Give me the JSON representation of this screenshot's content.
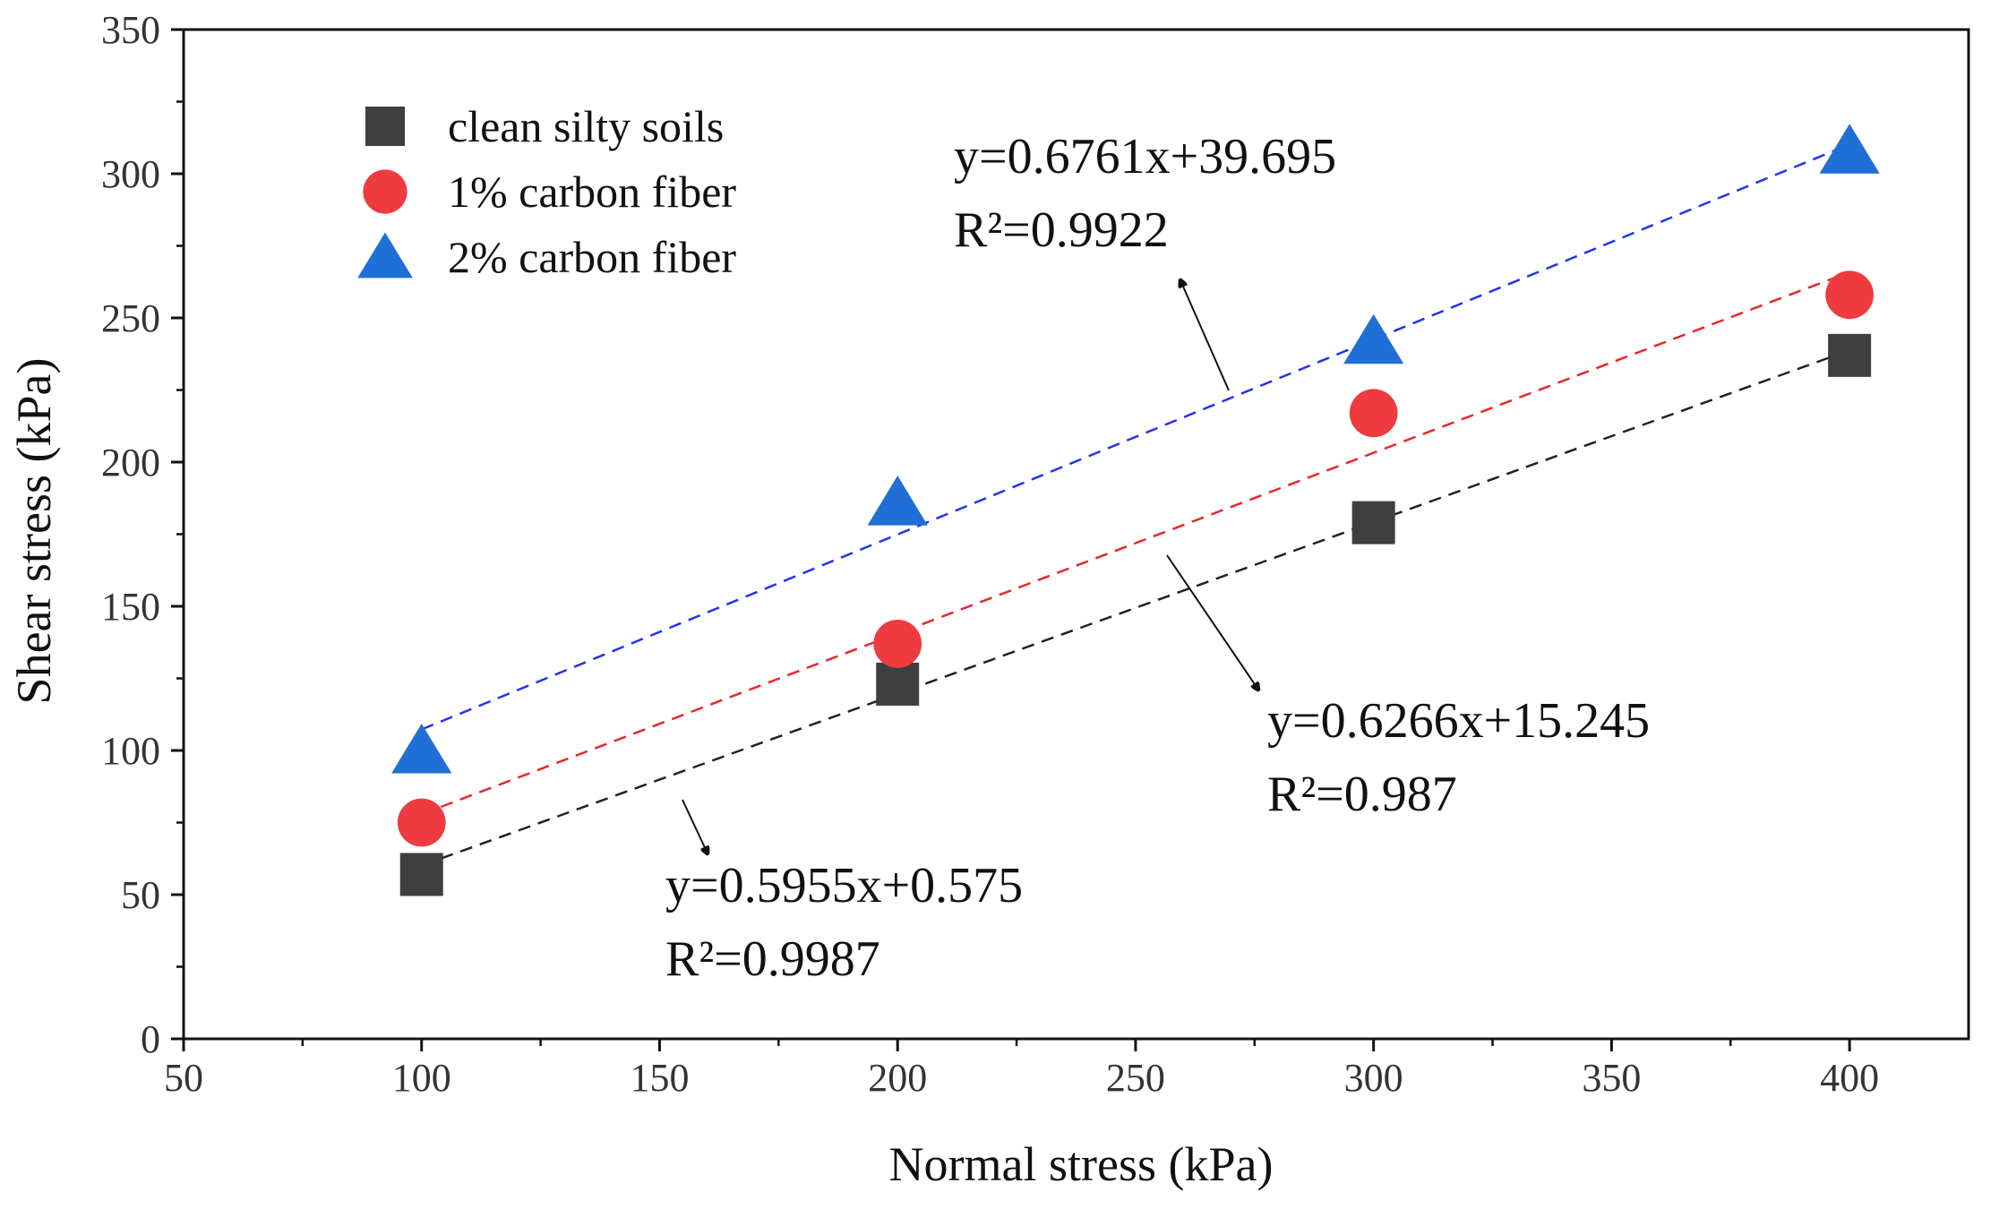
{
  "chart_data": {
    "type": "scatter",
    "title": "",
    "xlabel": "Normal stress (kPa)",
    "ylabel": "Shear stress (kPa)",
    "xlim": [
      50,
      425
    ],
    "ylim": [
      0,
      350
    ],
    "xticks": [
      50,
      100,
      150,
      200,
      250,
      300,
      350,
      400
    ],
    "yticks": [
      0,
      50,
      100,
      150,
      200,
      250,
      300,
      350
    ],
    "grid": false,
    "legend_position": "top-left",
    "series": [
      {
        "name": "clean silty soils",
        "marker": "square",
        "color": "#3f3f3f",
        "line_color": "#222222",
        "x": [
          100,
          200,
          300,
          400
        ],
        "y": [
          57,
          123,
          179,
          237
        ],
        "fit": {
          "slope": 0.5955,
          "intercept": 0.575,
          "x_range": [
            100,
            400
          ]
        },
        "equation": "y=0.5955x+0.575",
        "r2": "R²=0.9987"
      },
      {
        "name": "1% carbon fiber",
        "marker": "circle",
        "color": "#ef3b3f",
        "line_color": "#e8262a",
        "x": [
          100,
          200,
          300,
          400
        ],
        "y": [
          75,
          137,
          217,
          258
        ],
        "fit": {
          "slope": 0.6266,
          "intercept": 15.245,
          "x_range": [
            100,
            400
          ]
        },
        "equation": "y=0.6266x+15.245",
        "r2": "R²=0.987"
      },
      {
        "name": "2% carbon fiber",
        "marker": "triangle",
        "color": "#1f6fd6",
        "line_color": "#2233ee",
        "x": [
          100,
          200,
          300,
          400
        ],
        "y": [
          100,
          186,
          242,
          308
        ],
        "fit": {
          "slope": 0.6761,
          "intercept": 39.695,
          "x_range": [
            100,
            400
          ]
        },
        "equation": "y=0.6761x+39.695",
        "r2": "R²=0.9922"
      }
    ]
  }
}
